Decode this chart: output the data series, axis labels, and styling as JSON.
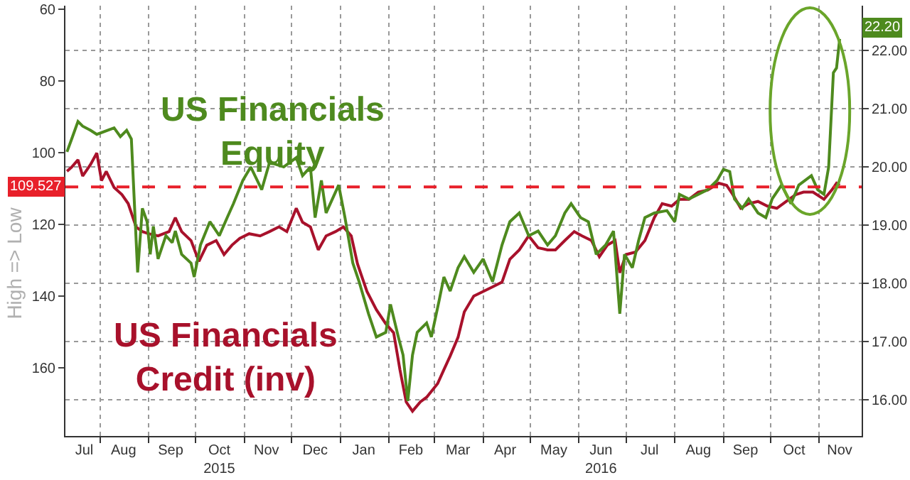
{
  "chart_data": {
    "type": "line",
    "ylabel": "High => Low",
    "xlim": [
      "2015-07-10",
      "2016-11-28"
    ],
    "xticks": [
      {
        "value": "2015-07-22",
        "label": "Jul"
      },
      {
        "value": "2015-08-16",
        "label": "Aug"
      },
      {
        "value": "2015-09-15",
        "label": "Sep"
      },
      {
        "value": "2015-10-16",
        "label": "Oct\n2015"
      },
      {
        "value": "2015-11-15",
        "label": "Nov"
      },
      {
        "value": "2015-12-16",
        "label": "Dec"
      },
      {
        "value": "2016-01-16",
        "label": "Jan"
      },
      {
        "value": "2016-02-15",
        "label": "Feb"
      },
      {
        "value": "2016-03-16",
        "label": "Mar"
      },
      {
        "value": "2016-04-15",
        "label": "Apr"
      },
      {
        "value": "2016-05-16",
        "label": "May"
      },
      {
        "value": "2016-06-15",
        "label": "Jun\n2016"
      },
      {
        "value": "2016-07-16",
        "label": "Jul"
      },
      {
        "value": "2016-08-16",
        "label": "Aug"
      },
      {
        "value": "2016-09-15",
        "label": "Sep"
      },
      {
        "value": "2016-10-16",
        "label": "Oct"
      },
      {
        "value": "2016-11-14",
        "label": "Nov"
      }
    ],
    "ylim": [
      179,
      59
    ],
    "yticks": [
      60,
      80,
      100,
      120,
      140,
      160
    ],
    "y2lim": [
      15.38,
      22.77
    ],
    "y2ticks": [
      {
        "value": 16,
        "label": "16.00"
      },
      {
        "value": 17,
        "label": "17.00"
      },
      {
        "value": 18,
        "label": "18.00"
      },
      {
        "value": 19,
        "label": "19.00"
      },
      {
        "value": 20,
        "label": "20.00"
      },
      {
        "value": 21,
        "label": "21.00"
      },
      {
        "value": 22,
        "label": "22.00"
      }
    ],
    "grid": true,
    "legend": false,
    "marker": "none",
    "line_style": "solid",
    "ref_lines": [
      {
        "axis": "y",
        "value": 109.527,
        "label": "109.527",
        "color": "#e8202a",
        "line_style": "dashed"
      }
    ],
    "series": [
      {
        "name": "US Financials\nEquity",
        "color": "#4e8a1e",
        "axis": "y2",
        "x": [
          "2015-07-11",
          "2015-07-14",
          "2015-07-18",
          "2015-07-21",
          "2015-07-26",
          "2015-07-30",
          "2015-08-10",
          "2015-08-14",
          "2015-08-18",
          "2015-08-21",
          "2015-08-25",
          "2015-08-28",
          "2015-08-31",
          "2015-09-02",
          "2015-09-04",
          "2015-09-07",
          "2015-09-12",
          "2015-09-16",
          "2015-09-18",
          "2015-09-22",
          "2015-09-28",
          "2015-09-30",
          "2015-10-04",
          "2015-10-10",
          "2015-10-16",
          "2015-10-21",
          "2015-10-25",
          "2015-10-31",
          "2015-11-05",
          "2015-11-12",
          "2015-11-17",
          "2015-11-26",
          "2015-12-04",
          "2015-12-08",
          "2015-12-13",
          "2015-12-16",
          "2015-12-20",
          "2015-12-23",
          "2015-12-31",
          "2016-01-04",
          "2016-01-09",
          "2016-01-13",
          "2016-01-19",
          "2016-01-24",
          "2016-01-30",
          "2016-02-02",
          "2016-02-07",
          "2016-02-10",
          "2016-02-13",
          "2016-02-16",
          "2016-02-19",
          "2016-02-25",
          "2016-02-28",
          "2016-03-04",
          "2016-03-07",
          "2016-03-11",
          "2016-03-16",
          "2016-03-20",
          "2016-03-26",
          "2016-04-01",
          "2016-04-07",
          "2016-04-13",
          "2016-04-18",
          "2016-04-24",
          "2016-04-30",
          "2016-05-06",
          "2016-05-12",
          "2016-05-17",
          "2016-05-23",
          "2016-05-27",
          "2016-06-02",
          "2016-06-07",
          "2016-06-12",
          "2016-06-18",
          "2016-06-23",
          "2016-06-27",
          "2016-06-30",
          "2016-07-05",
          "2016-07-09",
          "2016-07-13",
          "2016-07-19",
          "2016-07-27",
          "2016-08-01",
          "2016-08-04",
          "2016-08-10",
          "2016-08-16",
          "2016-08-22",
          "2016-08-28",
          "2016-09-01",
          "2016-09-05",
          "2016-09-08",
          "2016-09-13",
          "2016-09-17",
          "2016-09-23",
          "2016-09-28",
          "2016-10-02",
          "2016-10-08",
          "2016-10-14",
          "2016-10-19",
          "2016-10-27",
          "2016-10-31",
          "2016-11-04",
          "2016-11-07",
          "2016-11-10",
          "2016-11-12",
          "2016-11-14"
        ],
        "values": [
          20.26,
          20.48,
          20.78,
          20.7,
          20.63,
          20.56,
          20.67,
          20.52,
          20.63,
          20.48,
          18.19,
          19.29,
          19.06,
          18.5,
          18.98,
          18.42,
          18.82,
          18.7,
          18.9,
          18.5,
          18.35,
          18.11,
          18.66,
          19.06,
          18.82,
          19.13,
          19.37,
          19.77,
          20.0,
          19.61,
          20.08,
          20.0,
          20.16,
          19.85,
          20.0,
          19.13,
          19.77,
          19.21,
          19.69,
          19.13,
          18.35,
          18.03,
          17.48,
          17.08,
          17.16,
          17.64,
          17.08,
          16.77,
          15.98,
          16.77,
          17.16,
          17.32,
          17.08,
          17.71,
          18.11,
          17.87,
          18.27,
          18.46,
          18.19,
          18.42,
          18.03,
          18.66,
          19.06,
          19.21,
          18.82,
          18.9,
          18.66,
          18.82,
          19.21,
          19.37,
          19.13,
          19.06,
          18.5,
          18.66,
          18.9,
          17.48,
          18.5,
          18.27,
          18.74,
          19.13,
          19.21,
          19.25,
          19.06,
          19.53,
          19.45,
          19.53,
          19.61,
          19.77,
          19.96,
          19.92,
          19.45,
          19.29,
          19.45,
          19.21,
          19.13,
          19.45,
          19.69,
          19.37,
          19.69,
          19.85,
          19.61,
          19.53,
          20.0,
          21.62,
          21.7,
          22.2
        ],
        "value_labels": [
          null,
          null,
          null,
          null,
          null,
          null,
          null,
          null,
          null,
          null,
          null,
          null,
          null,
          null,
          null,
          null,
          null,
          null,
          null,
          null,
          null,
          null,
          null,
          null,
          null,
          null,
          null,
          null,
          null,
          null,
          null,
          null,
          null,
          null,
          null,
          null,
          null,
          null,
          null,
          null,
          null,
          null,
          null,
          null,
          null,
          null,
          null,
          null,
          null,
          null,
          null,
          null,
          null,
          null,
          null,
          null,
          null,
          null,
          null,
          null,
          null,
          null,
          null,
          null,
          null,
          null,
          null,
          null,
          null,
          null,
          null,
          null,
          null,
          null,
          null,
          null,
          null,
          null,
          null,
          null,
          null,
          null,
          null,
          null,
          null,
          null,
          null,
          null,
          null,
          null,
          null,
          null,
          null,
          null,
          null,
          null,
          null,
          null,
          null,
          null,
          null,
          null,
          null,
          null,
          null,
          "22.20"
        ]
      },
      {
        "name": "US Financials\nCredit (inv)",
        "color": "#a8112b",
        "axis": "y",
        "x": [
          "2015-07-11",
          "2015-07-14",
          "2015-07-18",
          "2015-07-21",
          "2015-07-26",
          "2015-07-30",
          "2015-08-02",
          "2015-08-05",
          "2015-08-10",
          "2015-08-15",
          "2015-08-19",
          "2015-08-24",
          "2015-08-28",
          "2015-09-01",
          "2015-09-07",
          "2015-09-14",
          "2015-09-18",
          "2015-09-22",
          "2015-09-28",
          "2015-10-03",
          "2015-10-08",
          "2015-10-14",
          "2015-10-19",
          "2015-10-24",
          "2015-10-29",
          "2015-11-04",
          "2015-11-11",
          "2015-11-17",
          "2015-11-23",
          "2015-11-28",
          "2015-12-04",
          "2015-12-08",
          "2015-12-13",
          "2015-12-18",
          "2015-12-23",
          "2015-12-29",
          "2016-01-03",
          "2016-01-08",
          "2016-01-12",
          "2016-01-18",
          "2016-01-24",
          "2016-01-30",
          "2016-02-04",
          "2016-02-08",
          "2016-02-12",
          "2016-02-16",
          "2016-02-21",
          "2016-02-25",
          "2016-03-03",
          "2016-03-07",
          "2016-03-11",
          "2016-03-16",
          "2016-03-20",
          "2016-03-26",
          "2016-04-01",
          "2016-04-07",
          "2016-04-13",
          "2016-04-18",
          "2016-04-24",
          "2016-04-30",
          "2016-05-06",
          "2016-05-12",
          "2016-05-17",
          "2016-05-23",
          "2016-05-29",
          "2016-06-03",
          "2016-06-09",
          "2016-06-14",
          "2016-06-19",
          "2016-06-24",
          "2016-06-27",
          "2016-07-01",
          "2016-07-07",
          "2016-07-13",
          "2016-07-19",
          "2016-07-24",
          "2016-07-30",
          "2016-08-04",
          "2016-08-10",
          "2016-08-16",
          "2016-08-22",
          "2016-08-29",
          "2016-09-03",
          "2016-09-07",
          "2016-09-12",
          "2016-09-17",
          "2016-09-23",
          "2016-09-29",
          "2016-10-05",
          "2016-10-11",
          "2016-10-17",
          "2016-10-22",
          "2016-10-28",
          "2016-11-04",
          "2016-11-09",
          "2016-11-12",
          "2016-11-14"
        ],
        "values": [
          105.2,
          104.0,
          102.0,
          106.5,
          103.3,
          100.1,
          107.8,
          105.2,
          109.7,
          111.7,
          114.2,
          120.7,
          122.0,
          122.6,
          123.2,
          122.0,
          118.1,
          122.0,
          124.5,
          130.3,
          125.8,
          124.5,
          128.4,
          125.8,
          123.9,
          122.6,
          123.2,
          122.0,
          120.7,
          122.0,
          115.5,
          119.4,
          120.7,
          127.1,
          123.2,
          122.0,
          120.7,
          123.2,
          131.0,
          138.7,
          143.8,
          147.7,
          150.2,
          160.5,
          169.5,
          172.1,
          169.5,
          168.2,
          164.4,
          160.5,
          156.7,
          151.5,
          144.4,
          140.0,
          138.7,
          137.4,
          136.1,
          129.7,
          127.1,
          123.2,
          126.5,
          127.1,
          127.1,
          124.5,
          122.0,
          123.2,
          124.5,
          129.0,
          125.8,
          124.5,
          133.5,
          128.4,
          127.7,
          124.5,
          118.1,
          114.2,
          114.9,
          113.0,
          113.0,
          111.0,
          110.4,
          108.5,
          109.1,
          111.7,
          115.5,
          114.2,
          113.6,
          114.9,
          115.5,
          113.6,
          111.7,
          111.0,
          111.0,
          113.0,
          110.4,
          108.5,
          109.1
        ]
      }
    ]
  }
}
